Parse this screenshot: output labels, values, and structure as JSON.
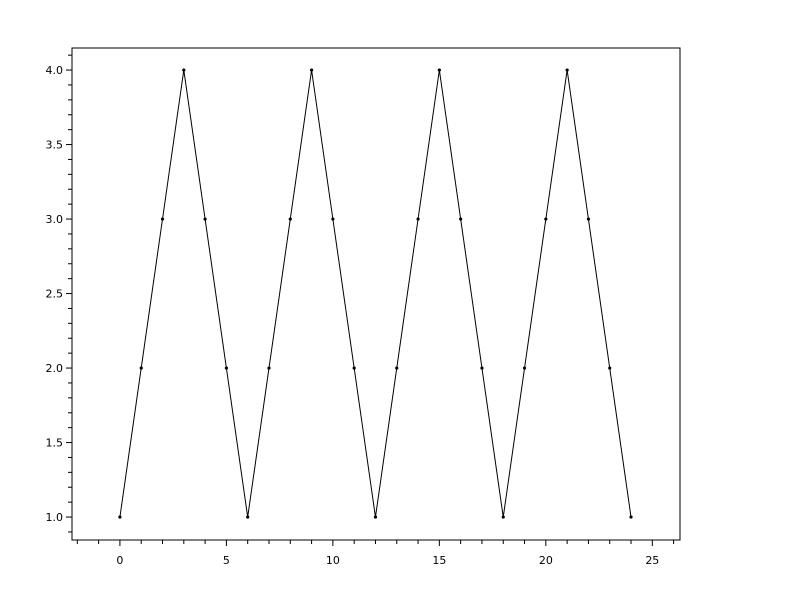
{
  "chart_data": {
    "type": "line",
    "title": "",
    "xlabel": "",
    "ylabel": "",
    "x": [
      0,
      1,
      2,
      3,
      4,
      5,
      6,
      7,
      8,
      9,
      10,
      11,
      12,
      13,
      14,
      15,
      16,
      17,
      18,
      19,
      20,
      21,
      22,
      23,
      24
    ],
    "series": [
      {
        "values": [
          1,
          2,
          3,
          4,
          3,
          2,
          1,
          2,
          3,
          4,
          3,
          2,
          1,
          2,
          3,
          4,
          3,
          2,
          1,
          2,
          3,
          4,
          3,
          2,
          1
        ],
        "color": "#000000",
        "marker": "dot"
      }
    ],
    "xlim": [
      -2.25,
      26.3
    ],
    "ylim": [
      0.846,
      4.148
    ],
    "x_ticks": [
      0,
      5,
      10,
      15,
      20,
      25
    ],
    "x_tick_labels": [
      "0",
      "5",
      "10",
      "15",
      "20",
      "25"
    ],
    "x_minor_step": 1,
    "y_ticks": [
      1.0,
      1.5,
      2.0,
      2.5,
      3.0,
      3.5,
      4.0
    ],
    "y_tick_labels": [
      "1.0",
      "1.5",
      "2.0",
      "2.5",
      "3.0",
      "3.5",
      "4.0"
    ],
    "y_minor_step": 0.1,
    "grid": false,
    "legend": "none"
  }
}
